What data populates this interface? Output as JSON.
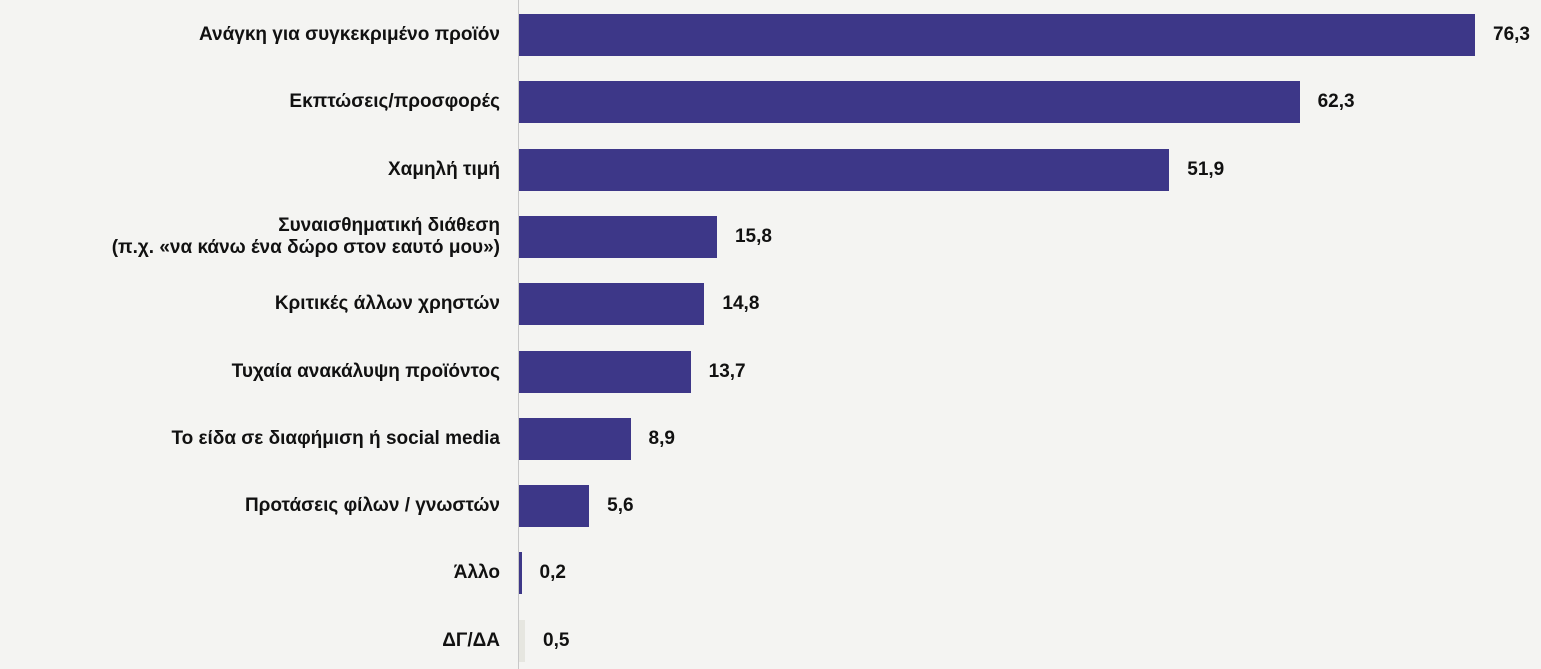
{
  "chart_data": {
    "type": "bar",
    "orientation": "horizontal",
    "categories": [
      [
        "Ανάγκη για συγκεκριμένο προϊόν"
      ],
      [
        "Εκπτώσεις/προσφορές"
      ],
      [
        "Χαμηλή τιμή"
      ],
      [
        "Συναισθηματική διάθεση",
        "(π.χ. «να κάνω ένα δώρο στον εαυτό μου»)"
      ],
      [
        "Κριτικές άλλων χρηστών"
      ],
      [
        "Τυχαία ανακάλυψη προϊόντος"
      ],
      [
        "Το είδα σε διαφήμιση ή  social media"
      ],
      [
        "Προτάσεις φίλων / γνωστών"
      ],
      [
        "Άλλο"
      ],
      [
        "ΔΓ/ΔΑ"
      ]
    ],
    "values": [
      76.3,
      62.3,
      51.9,
      15.8,
      14.8,
      13.7,
      8.9,
      5.6,
      0.2,
      0.5
    ],
    "value_labels": [
      "76,3",
      "62,3",
      "51,9",
      "15,8",
      "14,8",
      "13,7",
      "8,9",
      "5,6",
      "0,2",
      "0,5"
    ],
    "bar_colors": [
      "#3d3788",
      "#3d3788",
      "#3d3788",
      "#3d3788",
      "#3d3788",
      "#3d3788",
      "#3d3788",
      "#3d3788",
      "#3d3788",
      "#e6e6e0"
    ],
    "title": "",
    "xlabel": "",
    "ylabel": "",
    "xlim": [
      0,
      76.3
    ],
    "grid": false,
    "legend": "none"
  }
}
